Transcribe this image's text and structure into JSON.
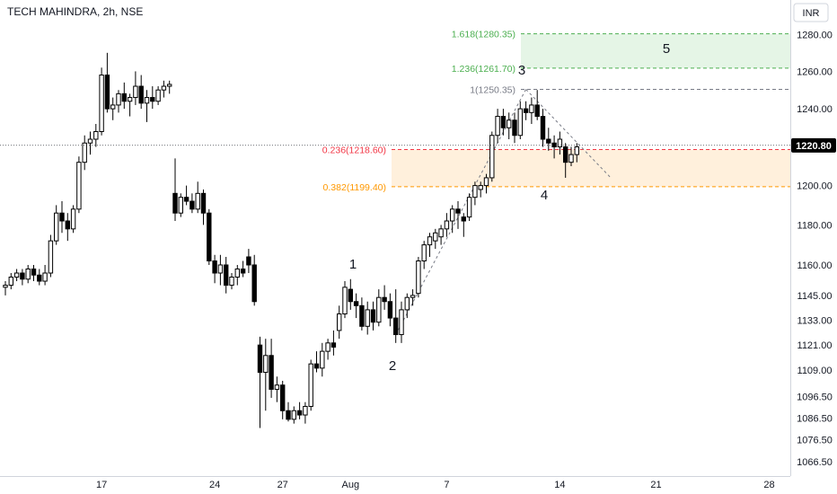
{
  "header": {
    "title": "TECH MAHINDRA, 2h, NSE"
  },
  "currency": "INR",
  "colors": {
    "candle": "#000000",
    "fib_green": "#4caf50",
    "fib_green_fill": "#e5f5e6",
    "fib_gray": "#787b86",
    "fib_red": "#f23645",
    "fib_orange": "#ff9800",
    "fib_orange_fill": "#fff0dc",
    "price_tag": "#000000"
  },
  "chart_data": {
    "type": "candlestick",
    "title": "TECH MAHINDRA, 2h, NSE",
    "last_price": 1220.8,
    "last_price_label": "1220.80",
    "y_scale": "log",
    "y_range": [
      1060,
      1295
    ],
    "y_ticks": [
      {
        "v": 1280,
        "label": "1280.00"
      },
      {
        "v": 1260,
        "label": "1260.00"
      },
      {
        "v": 1240,
        "label": "1240.00"
      },
      {
        "v": 1200,
        "label": "1200.00"
      },
      {
        "v": 1180,
        "label": "1180.00"
      },
      {
        "v": 1160,
        "label": "1160.00"
      },
      {
        "v": 1145,
        "label": "1145.00"
      },
      {
        "v": 1133,
        "label": "1133.00"
      },
      {
        "v": 1121,
        "label": "1121.00"
      },
      {
        "v": 1109,
        "label": "1109.00"
      },
      {
        "v": 1096.5,
        "label": "1096.50"
      },
      {
        "v": 1086.5,
        "label": "1086.50"
      },
      {
        "v": 1076.5,
        "label": "1076.50"
      },
      {
        "v": 1066.5,
        "label": "1066.50"
      }
    ],
    "x_ticks": [
      {
        "bar": 17,
        "label": "17"
      },
      {
        "bar": 37,
        "label": "24"
      },
      {
        "bar": 49,
        "label": "27"
      },
      {
        "bar": 61,
        "label": "Aug"
      },
      {
        "bar": 78,
        "label": "7"
      },
      {
        "bar": 98,
        "label": "14"
      },
      {
        "bar": 115,
        "label": "21"
      },
      {
        "bar": 135,
        "label": "28"
      }
    ],
    "candles": [
      [
        1149,
        1152,
        1145,
        1150
      ],
      [
        1150,
        1156,
        1148,
        1154
      ],
      [
        1154,
        1158,
        1152,
        1156
      ],
      [
        1156,
        1158,
        1150,
        1153
      ],
      [
        1153,
        1160,
        1151,
        1158
      ],
      [
        1158,
        1160,
        1152,
        1155
      ],
      [
        1155,
        1158,
        1150,
        1152
      ],
      [
        1152,
        1160,
        1150,
        1156
      ],
      [
        1156,
        1175,
        1154,
        1172
      ],
      [
        1172,
        1190,
        1170,
        1186
      ],
      [
        1186,
        1192,
        1176,
        1182
      ],
      [
        1182,
        1186,
        1172,
        1178
      ],
      [
        1178,
        1190,
        1176,
        1188
      ],
      [
        1188,
        1215,
        1186,
        1212
      ],
      [
        1212,
        1226,
        1208,
        1222
      ],
      [
        1222,
        1228,
        1216,
        1224
      ],
      [
        1224,
        1232,
        1220,
        1228
      ],
      [
        1228,
        1262,
        1226,
        1258
      ],
      [
        1258,
        1270,
        1238,
        1240
      ],
      [
        1240,
        1246,
        1234,
        1242
      ],
      [
        1242,
        1250,
        1238,
        1248
      ],
      [
        1248,
        1254,
        1240,
        1244
      ],
      [
        1244,
        1248,
        1236,
        1246
      ],
      [
        1246,
        1260,
        1242,
        1252
      ],
      [
        1252,
        1258,
        1240,
        1243
      ],
      [
        1243,
        1250,
        1233,
        1246
      ],
      [
        1246,
        1252,
        1240,
        1244
      ],
      [
        1244,
        1252,
        1242,
        1250
      ],
      [
        1250,
        1255,
        1246,
        1252
      ],
      [
        1252,
        1255,
        1248,
        1253
      ],
      [
        1196,
        1214,
        1182,
        1186
      ],
      [
        1186,
        1196,
        1184,
        1194
      ],
      [
        1194,
        1200,
        1190,
        1192
      ],
      [
        1192,
        1196,
        1186,
        1188
      ],
      [
        1188,
        1202,
        1186,
        1196
      ],
      [
        1196,
        1198,
        1180,
        1186
      ],
      [
        1186,
        1188,
        1160,
        1162
      ],
      [
        1162,
        1165,
        1151,
        1156
      ],
      [
        1156,
        1165,
        1150,
        1160
      ],
      [
        1160,
        1164,
        1146,
        1150
      ],
      [
        1150,
        1156,
        1148,
        1154
      ],
      [
        1154,
        1160,
        1150,
        1158
      ],
      [
        1158,
        1162,
        1154,
        1156
      ],
      [
        1164,
        1168,
        1156,
        1160
      ],
      [
        1160,
        1165,
        1140,
        1142
      ],
      [
        1121,
        1125,
        1082,
        1108
      ],
      [
        1108,
        1124,
        1090,
        1116
      ],
      [
        1116,
        1124,
        1096,
        1100
      ],
      [
        1100,
        1106,
        1094,
        1102
      ],
      [
        1102,
        1104,
        1086,
        1090
      ],
      [
        1090,
        1094,
        1085,
        1086
      ],
      [
        1086,
        1092,
        1084,
        1090
      ],
      [
        1090,
        1094,
        1086,
        1088
      ],
      [
        1088,
        1094,
        1084,
        1092
      ],
      [
        1092,
        1114,
        1090,
        1112
      ],
      [
        1112,
        1118,
        1108,
        1110
      ],
      [
        1110,
        1122,
        1106,
        1118
      ],
      [
        1118,
        1124,
        1114,
        1122
      ],
      [
        1122,
        1128,
        1116,
        1120
      ],
      [
        1128,
        1140,
        1124,
        1136
      ],
      [
        1136,
        1152,
        1134,
        1149
      ],
      [
        1148,
        1153,
        1138,
        1142
      ],
      [
        1142,
        1146,
        1134,
        1140
      ],
      [
        1140,
        1144,
        1128,
        1130
      ],
      [
        1130,
        1142,
        1126,
        1138
      ],
      [
        1138,
        1142,
        1128,
        1132
      ],
      [
        1132,
        1148,
        1130,
        1144
      ],
      [
        1144,
        1150,
        1138,
        1142
      ],
      [
        1142,
        1146,
        1130,
        1134
      ],
      [
        1134,
        1148,
        1122,
        1126
      ],
      [
        1126,
        1142,
        1122,
        1138
      ],
      [
        1138,
        1146,
        1134,
        1144
      ],
      [
        1144,
        1148,
        1140,
        1145
      ],
      [
        1146,
        1164,
        1144,
        1162
      ],
      [
        1162,
        1172,
        1158,
        1170
      ],
      [
        1170,
        1176,
        1164,
        1174
      ],
      [
        1172,
        1178,
        1168,
        1176
      ],
      [
        1174,
        1180,
        1170,
        1178
      ],
      [
        1178,
        1186,
        1174,
        1182
      ],
      [
        1182,
        1190,
        1176,
        1188
      ],
      [
        1188,
        1192,
        1178,
        1186
      ],
      [
        1184,
        1186,
        1174,
        1182
      ],
      [
        1184,
        1196,
        1182,
        1194
      ],
      [
        1194,
        1202,
        1190,
        1200
      ],
      [
        1198,
        1202,
        1194,
        1200
      ],
      [
        1200,
        1206,
        1196,
        1204
      ],
      [
        1204,
        1228,
        1202,
        1226
      ],
      [
        1226,
        1240,
        1222,
        1236
      ],
      [
        1236,
        1240,
        1226,
        1230
      ],
      [
        1230,
        1238,
        1224,
        1234
      ],
      [
        1234,
        1238,
        1222,
        1226
      ],
      [
        1226,
        1244,
        1224,
        1240
      ],
      [
        1240,
        1244,
        1234,
        1238
      ],
      [
        1238,
        1246,
        1232,
        1242
      ],
      [
        1242,
        1250,
        1234,
        1236
      ],
      [
        1236,
        1240,
        1220,
        1224
      ],
      [
        1224,
        1230,
        1218,
        1222
      ],
      [
        1222,
        1226,
        1214,
        1220
      ],
      [
        1220,
        1228,
        1216,
        1224
      ],
      [
        1220,
        1222,
        1204,
        1212
      ],
      [
        1212,
        1220,
        1210,
        1216
      ],
      [
        1216,
        1222,
        1212,
        1220
      ]
    ],
    "fib_levels": [
      {
        "v": 1280.35,
        "label": "1.618(1280.35)",
        "color": "#4caf50"
      },
      {
        "v": 1261.7,
        "label": "1.236(1261.70)",
        "color": "#4caf50"
      },
      {
        "v": 1250.35,
        "label": "1(1250.35)",
        "color": "#787b86"
      },
      {
        "v": 1218.6,
        "label": "0.236(1218.60)",
        "color": "#f23645"
      },
      {
        "v": 1199.4,
        "label": "0.382(1199.40)",
        "color": "#ff9800"
      }
    ],
    "wave_labels": [
      "1",
      "2",
      "3",
      "4",
      "5"
    ]
  }
}
